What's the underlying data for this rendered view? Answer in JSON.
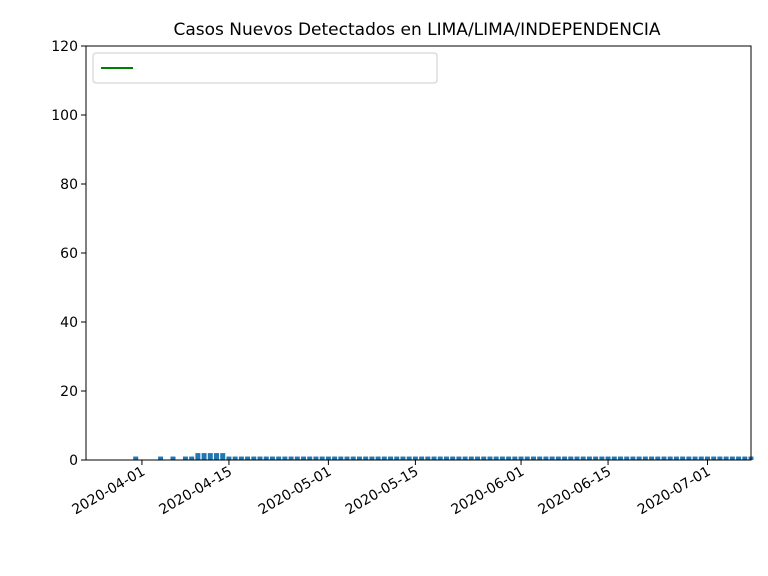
{
  "chart_data": {
    "type": "bar",
    "title": "Casos Nuevos Detectados en LIMA/LIMA/INDEPENDENCIA",
    "xlabel": "",
    "ylabel": "",
    "x_start": "2020-03-23",
    "x_end": "2020-07-08",
    "ylim": [
      0,
      120
    ],
    "y_ticks": [
      0,
      20,
      40,
      60,
      80,
      100,
      120
    ],
    "x_tick_labels": [
      "2020-04-01",
      "2020-04-15",
      "2020-05-01",
      "2020-05-15",
      "2020-06-01",
      "2020-06-15",
      "2020-07-01"
    ],
    "legend_position": "upper-left",
    "colors": {
      "bar": "#1f77b4",
      "line": "#008000"
    },
    "series": [
      {
        "type": "bar",
        "dates": [
          "2020-03-26",
          "2020-03-31",
          "2020-04-03",
          "2020-04-04",
          "2020-04-06",
          "2020-04-08",
          "2020-04-09",
          "2020-04-10",
          "2020-04-11",
          "2020-04-12",
          "2020-04-13",
          "2020-04-14",
          "2020-04-15",
          "2020-04-16",
          "2020-04-17",
          "2020-04-18",
          "2020-04-19",
          "2020-04-20",
          "2020-04-21",
          "2020-04-22",
          "2020-04-23",
          "2020-04-24",
          "2020-04-25",
          "2020-04-26",
          "2020-04-27",
          "2020-04-28",
          "2020-04-29",
          "2020-04-30",
          "2020-05-01",
          "2020-05-02",
          "2020-05-03",
          "2020-05-04",
          "2020-05-05",
          "2020-05-06",
          "2020-05-07",
          "2020-05-08",
          "2020-05-09",
          "2020-05-10",
          "2020-05-11",
          "2020-05-12",
          "2020-05-13",
          "2020-05-14",
          "2020-05-15",
          "2020-05-16",
          "2020-05-17",
          "2020-05-18",
          "2020-05-19",
          "2020-05-20",
          "2020-05-21",
          "2020-05-22",
          "2020-05-23",
          "2020-05-24",
          "2020-05-25",
          "2020-05-26",
          "2020-05-27",
          "2020-05-28",
          "2020-05-29",
          "2020-05-30",
          "2020-05-31",
          "2020-06-01",
          "2020-06-02",
          "2020-06-03",
          "2020-06-04",
          "2020-06-05",
          "2020-06-06",
          "2020-06-07",
          "2020-06-08",
          "2020-06-09",
          "2020-06-10",
          "2020-06-11",
          "2020-06-12",
          "2020-06-13",
          "2020-06-14",
          "2020-06-15",
          "2020-06-16",
          "2020-06-17",
          "2020-06-18",
          "2020-06-19",
          "2020-06-20",
          "2020-06-21",
          "2020-06-22",
          "2020-06-23",
          "2020-06-24",
          "2020-06-25",
          "2020-06-26",
          "2020-06-27",
          "2020-06-28",
          "2020-06-29",
          "2020-06-30",
          "2020-07-01",
          "2020-07-02",
          "2020-07-03",
          "2020-07-04",
          "2020-07-05",
          "2020-07-06",
          "2020-07-07",
          "2020-07-08"
        ],
        "values": [
          0,
          1,
          0,
          1,
          1,
          1,
          1,
          2,
          2,
          2,
          2,
          2,
          1,
          1,
          1,
          1,
          1,
          1,
          1,
          1,
          1,
          1,
          1,
          1,
          1,
          1,
          1,
          1,
          1,
          1,
          1,
          1,
          1,
          1,
          1,
          1,
          1,
          1,
          1,
          1,
          1,
          1,
          1,
          1,
          1,
          1,
          1,
          1,
          1,
          1,
          1,
          1,
          1,
          1,
          1,
          1,
          1,
          1,
          1,
          1,
          1,
          1,
          1,
          1,
          1,
          1,
          1,
          1,
          1,
          1,
          1,
          1,
          1,
          1,
          1,
          1,
          1,
          1,
          1,
          1,
          1,
          1,
          1,
          1,
          1,
          1,
          1,
          1,
          1,
          1,
          1,
          1,
          1,
          1,
          1,
          1,
          1
        ]
      }
    ]
  }
}
